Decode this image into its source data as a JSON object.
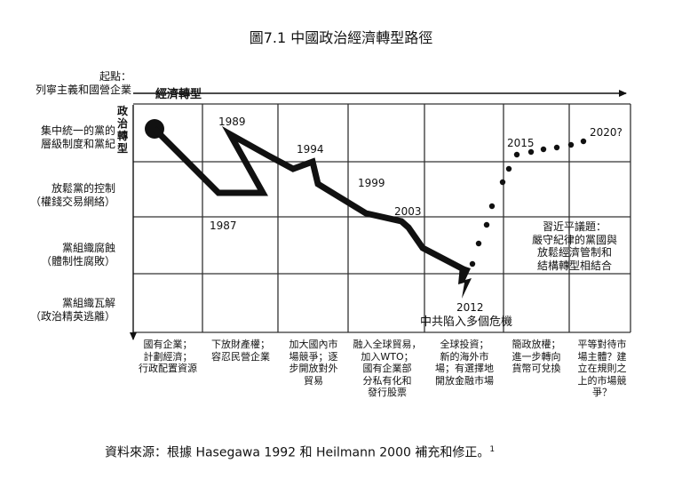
{
  "title": "圖7.1 中國政治經濟轉型路徑",
  "x_axis_label": "經濟轉型",
  "y_axis_label": "政治轉型",
  "left_labels": [
    [
      "起點：",
      "列寧主義和國營企業"
    ],
    [
      "集中統一的黨的",
      "層級制度和黨紀"
    ],
    [
      "放鬆黨的控制",
      "（權錢交易網絡）"
    ],
    [
      "黨組織腐蝕",
      "（體制性腐敗）"
    ],
    [
      "黨組織瓦解",
      "（政治精英逃離）"
    ]
  ],
  "year_labels": [
    "1989",
    "1994",
    "1999",
    "2003",
    "1987",
    "2015",
    "2020?"
  ],
  "crisis_year": "2012",
  "crisis_text": "中共陷入多個危機",
  "xi_note": [
    "習近平議題：",
    "嚴守紀律的黨國與",
    "放鬆經濟管制和",
    "結構轉型相結合"
  ],
  "stage_descriptions": [
    [
      "國有企業；",
      "計劃經濟；",
      "行政配置資源"
    ],
    [
      "下放財產權；",
      "容忍民營企業"
    ],
    [
      "加大國內市",
      "場競爭；逐",
      "步開放對外",
      "貿易"
    ],
    [
      "融入全球貿易，",
      "加入WTO；",
      "國有企業部",
      "分私有化和",
      "發行股票"
    ],
    [
      "全球投資；",
      "新的海外市",
      "場；有選擇地",
      "開放金融市場"
    ],
    [
      "簡政放權；",
      "進一步轉向",
      "貨幣可兌換"
    ],
    [
      "平等對待市",
      "場主體？建",
      "立在規則之",
      "上的市場競",
      "爭？"
    ]
  ],
  "source_note": "資料來源：根據 Hasegawa 1992 和 Heilmann 2000 補充和修正。",
  "source_footnote": "1",
  "colors": {
    "ink": "#111111",
    "grid": "#333333"
  }
}
